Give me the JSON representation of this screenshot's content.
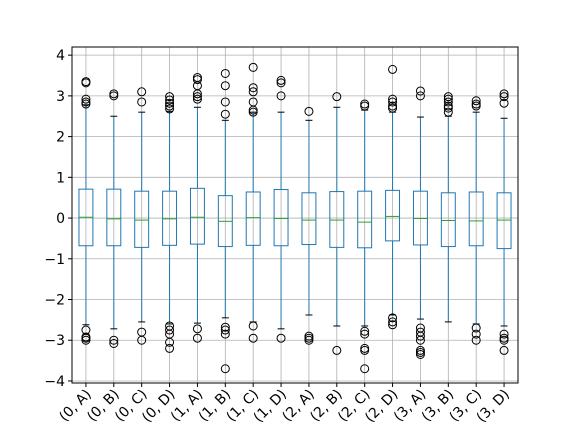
{
  "chart_data": {
    "type": "box",
    "categories": [
      "(0, A)",
      "(0, B)",
      "(0, C)",
      "(0, D)",
      "(1, A)",
      "(1, B)",
      "(1, C)",
      "(1, D)",
      "(2, A)",
      "(2, B)",
      "(2, C)",
      "(2, D)",
      "(3, A)",
      "(3, B)",
      "(3, C)",
      "(3, D)"
    ],
    "boxes": [
      {
        "q1": -0.68,
        "median": 0.02,
        "q3": 0.71,
        "whislo": -2.62,
        "whishi": 2.78,
        "fliers": [
          3.35,
          3.32,
          2.92,
          2.85,
          2.8,
          -2.75,
          -2.92,
          -3.0,
          -2.95
        ]
      },
      {
        "q1": -0.68,
        "median": -0.02,
        "q3": 0.71,
        "whislo": -2.72,
        "whishi": 2.5,
        "fliers": [
          3.05,
          3.0,
          -3.0,
          -3.08
        ]
      },
      {
        "q1": -0.72,
        "median": -0.05,
        "q3": 0.66,
        "whislo": -2.55,
        "whishi": 2.6,
        "fliers": [
          3.1,
          2.85,
          -2.8,
          -3.0
        ]
      },
      {
        "q1": -0.67,
        "median": -0.02,
        "q3": 0.66,
        "whislo": -2.6,
        "whishi": 2.62,
        "fliers": [
          2.98,
          2.9,
          2.82,
          2.75,
          2.68,
          -2.65,
          -2.75,
          -2.85,
          -3.05,
          -3.2
        ]
      },
      {
        "q1": -0.64,
        "median": 0.02,
        "q3": 0.73,
        "whislo": -2.58,
        "whishi": 2.72,
        "fliers": [
          3.45,
          3.4,
          3.25,
          3.05,
          2.98,
          2.92,
          -2.72,
          -2.95
        ]
      },
      {
        "q1": -0.7,
        "median": -0.08,
        "q3": 0.55,
        "whislo": -2.45,
        "whishi": 2.4,
        "fliers": [
          3.55,
          3.25,
          2.85,
          2.55,
          -2.68,
          -2.75,
          -2.85,
          -3.7
        ]
      },
      {
        "q1": -0.67,
        "median": 0.01,
        "q3": 0.64,
        "whislo": -2.55,
        "whishi": 2.6,
        "fliers": [
          3.7,
          3.2,
          3.1,
          2.85,
          2.65,
          2.6,
          -2.65,
          -2.95
        ]
      },
      {
        "q1": -0.68,
        "median": -0.01,
        "q3": 0.7,
        "whislo": -2.72,
        "whishi": 2.6,
        "fliers": [
          3.38,
          3.32,
          3.0,
          -2.95
        ]
      },
      {
        "q1": -0.65,
        "median": -0.05,
        "q3": 0.62,
        "whislo": -2.38,
        "whishi": 2.4,
        "fliers": [
          2.62,
          -2.9,
          -2.95,
          -3.0
        ]
      },
      {
        "q1": -0.72,
        "median": -0.05,
        "q3": 0.65,
        "whislo": -2.65,
        "whishi": 2.72,
        "fliers": [
          2.98,
          -3.25
        ]
      },
      {
        "q1": -0.73,
        "median": -0.1,
        "q3": 0.66,
        "whislo": -2.65,
        "whishi": 2.65,
        "fliers": [
          2.8,
          2.75,
          -2.78,
          -2.85,
          -3.2,
          -3.25,
          -3.7
        ]
      },
      {
        "q1": -0.56,
        "median": 0.04,
        "q3": 0.68,
        "whislo": -2.38,
        "whishi": 2.6,
        "fliers": [
          3.65,
          2.92,
          2.85,
          2.75,
          2.7,
          -2.45,
          -2.55,
          -2.62
        ]
      },
      {
        "q1": -0.66,
        "median": -0.01,
        "q3": 0.66,
        "whislo": -2.48,
        "whishi": 2.48,
        "fliers": [
          3.12,
          3.0,
          -2.7,
          -2.8,
          -2.9,
          -3.0,
          -3.25,
          -3.35,
          -3.3
        ]
      },
      {
        "q1": -0.7,
        "median": -0.06,
        "q3": 0.62,
        "whislo": -2.55,
        "whishi": 2.5,
        "fliers": [
          2.98,
          2.92,
          2.85,
          2.75,
          2.7,
          2.6
        ]
      },
      {
        "q1": -0.68,
        "median": -0.07,
        "q3": 0.64,
        "whislo": -2.6,
        "whishi": 2.6,
        "fliers": [
          2.88,
          2.8,
          2.75,
          -2.7,
          -2.85,
          -3.0
        ]
      },
      {
        "q1": -0.75,
        "median": -0.05,
        "q3": 0.62,
        "whislo": -2.65,
        "whishi": 2.45,
        "fliers": [
          3.05,
          2.98,
          2.82,
          -2.85,
          -2.95,
          -3.0,
          -3.25
        ]
      }
    ],
    "color": "#1f77b4",
    "median_color": "#2ca02c",
    "flier_color": "#000000",
    "ylim": [
      -4.05,
      4.2
    ],
    "yticks": [
      {
        "value": -4,
        "label": "−4"
      },
      {
        "value": -3,
        "label": "−3"
      },
      {
        "value": -2,
        "label": "−2"
      },
      {
        "value": -1,
        "label": "−1"
      },
      0,
      1,
      2,
      3,
      4
    ],
    "grid": true
  }
}
